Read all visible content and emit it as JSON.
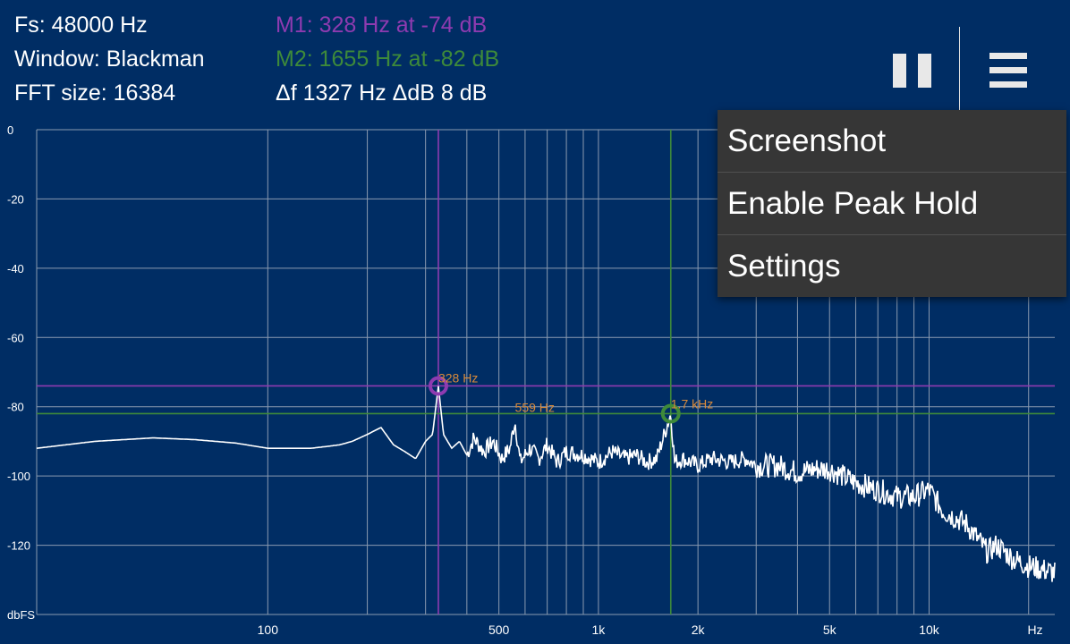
{
  "info": {
    "fs": "Fs: 48000 Hz",
    "window": "Window: Blackman",
    "fft_size": "FFT size: 16384",
    "m1": "M1: 328 Hz at -74 dB",
    "m2": "M2: 1655 Hz at -82 dB",
    "delta": "Δf 1327 Hz ΔdB 8 dB"
  },
  "colors": {
    "background": "#002d64",
    "grid": "#8a9ab0",
    "trace": "#ffffff",
    "marker1": "#8e3bb0",
    "marker2": "#3e8a3a",
    "peak_label": "#d98a3a",
    "menu_bg": "#363636"
  },
  "toolbar": {
    "pause_icon": "pause-icon",
    "menu_icon": "hamburger-menu-icon"
  },
  "menu": {
    "items": [
      "Screenshot",
      "Enable Peak Hold",
      "Settings"
    ]
  },
  "chart_data": {
    "type": "line",
    "x_scale": "log",
    "ylim": [
      -140,
      0
    ],
    "xlim": [
      20,
      24000
    ],
    "y_ticks": [
      0,
      -20,
      -40,
      -60,
      -80,
      -100,
      -120
    ],
    "y_tick_labels": [
      "0",
      "-20",
      "-40",
      "-60",
      "-80",
      "-100",
      "-120"
    ],
    "y_unit_label": "dbFS",
    "x_ticks": [
      100,
      500,
      1000,
      2000,
      5000,
      10000
    ],
    "x_tick_labels": [
      "100",
      "500",
      "1k",
      "2k",
      "5k",
      "10k"
    ],
    "x_unit_label": "Hz",
    "grid": true,
    "markers": [
      {
        "freq": 328,
        "db": -74,
        "color": "#8e3bb0"
      },
      {
        "freq": 1655,
        "db": -82,
        "color": "#3e8a3a"
      }
    ],
    "peak_labels": [
      {
        "text": "328 Hz",
        "freq": 328,
        "db": -73
      },
      {
        "text": "559 Hz",
        "freq": 559,
        "db": -81.5
      },
      {
        "text": "1.7  kHz",
        "freq": 1655,
        "db": -80.5
      }
    ],
    "series": [
      {
        "x": [
          20,
          30,
          45,
          60,
          80,
          100,
          120,
          135,
          150,
          165,
          180,
          200,
          220,
          240,
          260,
          280,
          300,
          315,
          328,
          340,
          360,
          380,
          400,
          420,
          450,
          480,
          510,
          540,
          559,
          580,
          620,
          660,
          700,
          750,
          800,
          900,
          1000,
          1100,
          1200,
          1300,
          1400,
          1500,
          1655,
          1700,
          1800,
          2000,
          2200,
          2500,
          2800,
          3000,
          3500,
          4000,
          4500,
          5000,
          6000,
          7000,
          8000,
          9000,
          10000,
          11000,
          12000,
          13000,
          14000,
          15000,
          16000,
          18000,
          20000,
          22000,
          24000
        ],
        "y": [
          -92,
          -90,
          -89,
          -89.5,
          -90.5,
          -92,
          -92,
          -92,
          -91.5,
          -91,
          -90,
          -88,
          -86,
          -91,
          -93,
          -95,
          -90,
          -88,
          -74,
          -88,
          -92,
          -90,
          -94,
          -89,
          -93,
          -90,
          -95,
          -92,
          -84,
          -96,
          -92,
          -95,
          -91,
          -96,
          -93,
          -94,
          -96,
          -93,
          -95,
          -94,
          -96,
          -95,
          -82,
          -96,
          -95,
          -97,
          -95,
          -96,
          -95,
          -97,
          -97,
          -99,
          -98,
          -98,
          -102,
          -104,
          -106,
          -106,
          -104,
          -110,
          -112,
          -114,
          -118,
          -122,
          -120,
          -124,
          -126,
          -127,
          -128
        ]
      }
    ]
  }
}
